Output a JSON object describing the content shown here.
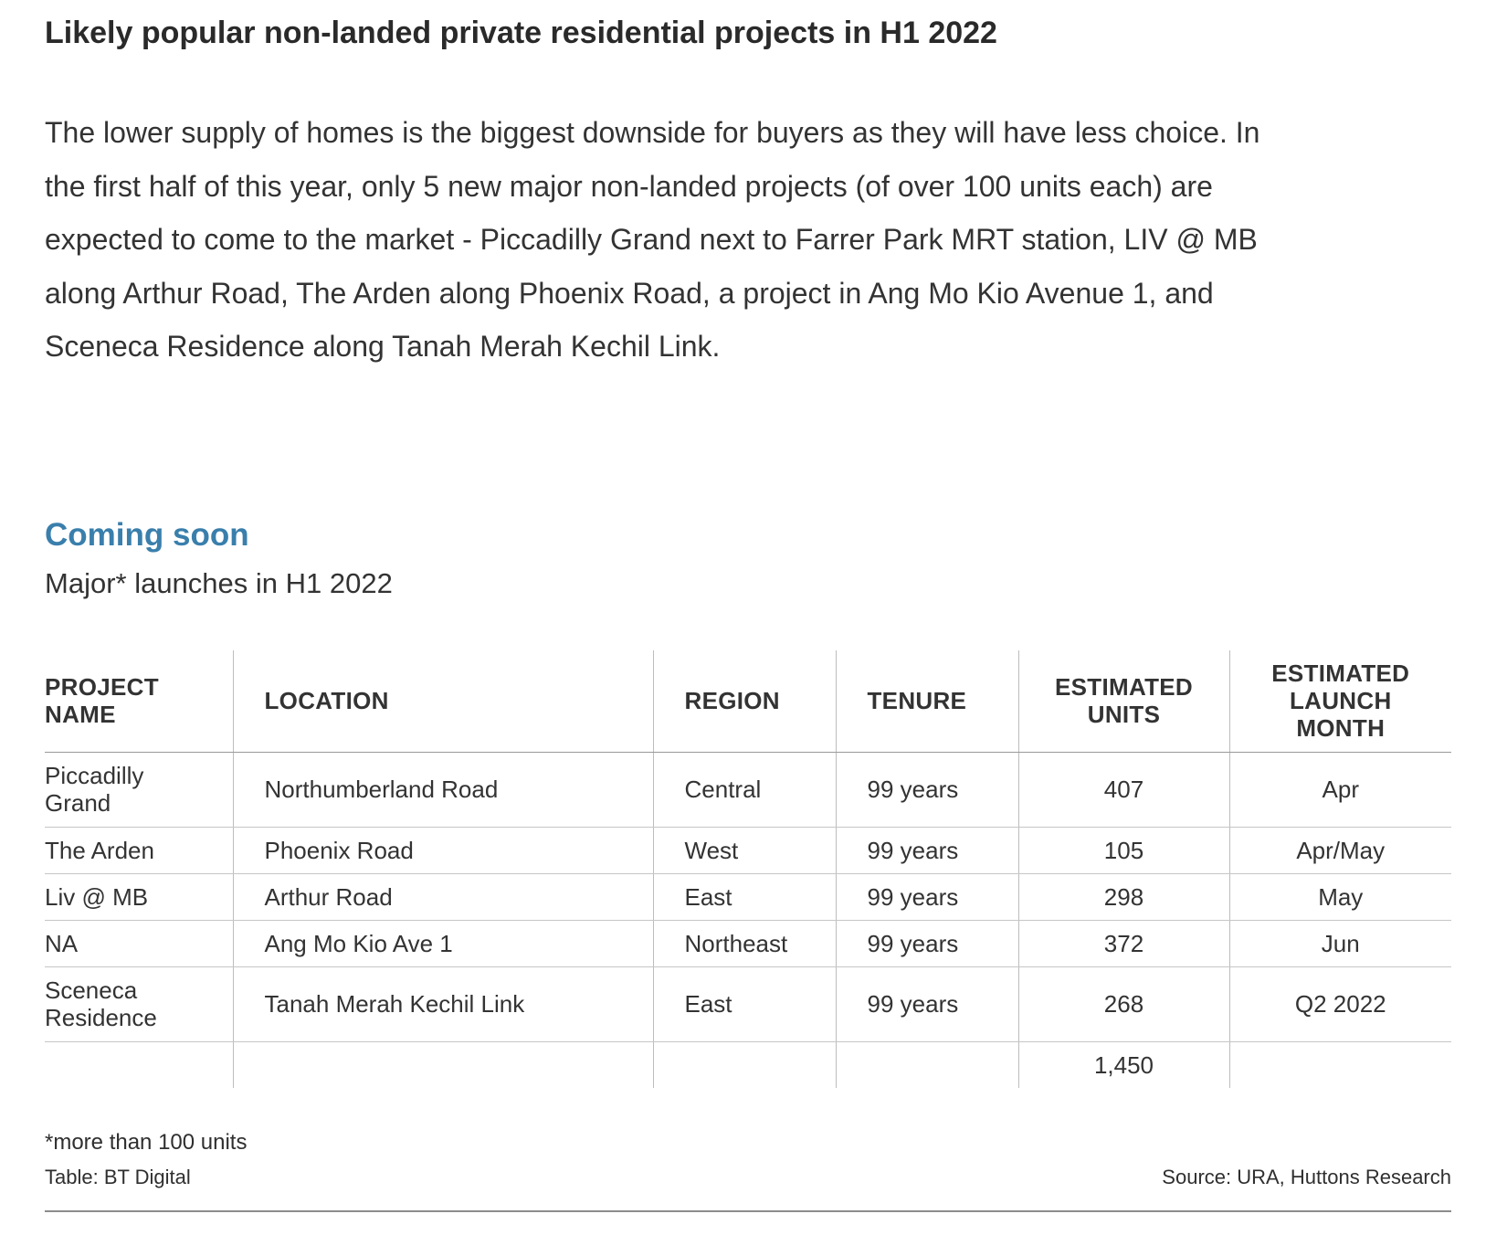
{
  "article": {
    "heading": "Likely popular non-landed private residential projects in H1 2022",
    "intro_lines": [
      "The lower supply of homes is the biggest downside for buyers as they will have less choice. In",
      "the first half of this year, only 5 new major non-landed projects (of over 100 units each) are",
      "expected to come to the market - Piccadilly Grand next to Farrer Park MRT station, LIV @ MB",
      "along Arthur Road, The Arden along Phoenix Road, a project in Ang Mo Kio Avenue 1, and",
      "Sceneca Residence along Tanah Merah Kechil Link."
    ]
  },
  "table": {
    "title": "Coming soon",
    "subtitle": "Major* launches in H1 2022",
    "headers": {
      "project": [
        "PROJECT",
        "NAME"
      ],
      "location": "LOCATION",
      "region": "REGION",
      "tenure": "TENURE",
      "units": [
        "ESTIMATED",
        "UNITS"
      ],
      "launch": [
        "ESTIMATED",
        "LAUNCH",
        "MONTH"
      ]
    },
    "rows": [
      {
        "project": [
          "Piccadilly",
          "Grand"
        ],
        "location": "Northumberland Road",
        "region": "Central",
        "tenure": "99 years",
        "units": "407",
        "launch": "Apr"
      },
      {
        "project": [
          "The Arden"
        ],
        "location": "Phoenix Road",
        "region": "West",
        "tenure": "99 years",
        "units": "105",
        "launch": "Apr/May"
      },
      {
        "project": [
          "Liv @ MB"
        ],
        "location": "Arthur Road",
        "region": "East",
        "tenure": "99 years",
        "units": "298",
        "launch": "May"
      },
      {
        "project": [
          "NA"
        ],
        "location": "Ang Mo Kio Ave 1",
        "region": "Northeast",
        "tenure": "99 years",
        "units": "372",
        "launch": "Jun"
      },
      {
        "project": [
          "Sceneca",
          "Residence"
        ],
        "location": "Tanah Merah Kechil Link",
        "region": "East",
        "tenure": "99 years",
        "units": "268",
        "launch": "Q2 2022"
      }
    ],
    "total_units": "1,450"
  },
  "footer": {
    "note": "*more than 100 units",
    "credit": "Table: BT Digital",
    "source": "Source: URA, Huttons Research"
  }
}
